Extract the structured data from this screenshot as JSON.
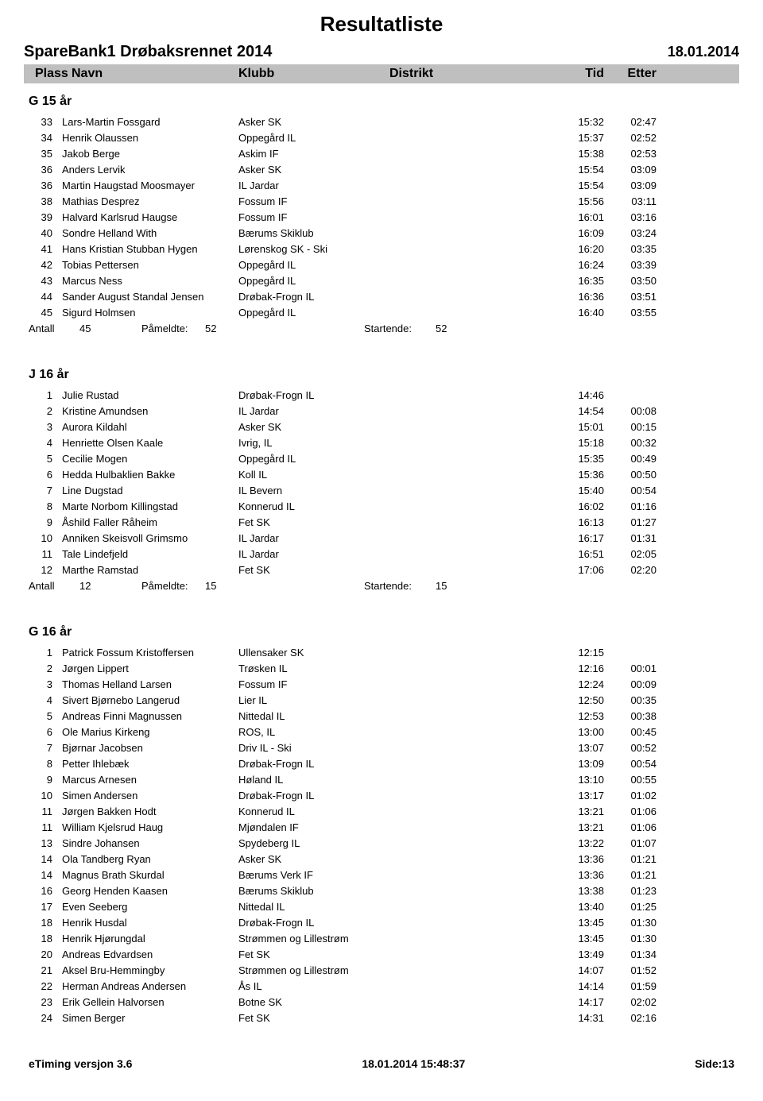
{
  "page_title": "Resultatliste",
  "event_name": "SpareBank1 Drøbaksrennet 2014",
  "event_date": "18.01.2014",
  "headers": {
    "plass": "Plass",
    "navn": "Navn",
    "klubb": "Klubb",
    "distrikt": "Distrikt",
    "tid": "Tid",
    "etter": "Etter"
  },
  "categories": [
    {
      "title": "G 15 år",
      "rows": [
        {
          "plass": "33",
          "navn": "Lars-Martin Fossgard",
          "klubb": "Asker SK",
          "tid": "15:32",
          "etter": "02:47"
        },
        {
          "plass": "34",
          "navn": "Henrik Olaussen",
          "klubb": "Oppegård IL",
          "tid": "15:37",
          "etter": "02:52"
        },
        {
          "plass": "35",
          "navn": "Jakob Berge",
          "klubb": "Askim IF",
          "tid": "15:38",
          "etter": "02:53"
        },
        {
          "plass": "36",
          "navn": "Anders Lervik",
          "klubb": "Asker SK",
          "tid": "15:54",
          "etter": "03:09"
        },
        {
          "plass": "36",
          "navn": "Martin Haugstad Moosmayer",
          "klubb": "IL Jardar",
          "tid": "15:54",
          "etter": "03:09"
        },
        {
          "plass": "38",
          "navn": "Mathias Desprez",
          "klubb": "Fossum IF",
          "tid": "15:56",
          "etter": "03:11"
        },
        {
          "plass": "39",
          "navn": "Halvard Karlsrud Haugse",
          "klubb": "Fossum IF",
          "tid": "16:01",
          "etter": "03:16"
        },
        {
          "plass": "40",
          "navn": "Sondre Helland With",
          "klubb": "Bærums Skiklub",
          "tid": "16:09",
          "etter": "03:24"
        },
        {
          "plass": "41",
          "navn": "Hans Kristian Stubban Hygen",
          "klubb": "Lørenskog SK - Ski",
          "tid": "16:20",
          "etter": "03:35"
        },
        {
          "plass": "42",
          "navn": "Tobias Pettersen",
          "klubb": "Oppegård IL",
          "tid": "16:24",
          "etter": "03:39"
        },
        {
          "plass": "43",
          "navn": "Marcus Ness",
          "klubb": "Oppegård IL",
          "tid": "16:35",
          "etter": "03:50"
        },
        {
          "plass": "44",
          "navn": "Sander August Standal Jensen",
          "klubb": "Drøbak-Frogn IL",
          "tid": "16:36",
          "etter": "03:51"
        },
        {
          "plass": "45",
          "navn": "Sigurd Holmsen",
          "klubb": "Oppegård IL",
          "tid": "16:40",
          "etter": "03:55"
        }
      ],
      "summary": {
        "antall_label": "Antall",
        "antall": "45",
        "pameldte_label": "Påmeldte:",
        "pameldte": "52",
        "startende_label": "Startende:",
        "startende": "52"
      }
    },
    {
      "title": "J 16 år",
      "rows": [
        {
          "plass": "1",
          "navn": "Julie Rustad",
          "klubb": "Drøbak-Frogn IL",
          "tid": "14:46",
          "etter": ""
        },
        {
          "plass": "2",
          "navn": "Kristine Amundsen",
          "klubb": "IL Jardar",
          "tid": "14:54",
          "etter": "00:08"
        },
        {
          "plass": "3",
          "navn": "Aurora Kildahl",
          "klubb": "Asker SK",
          "tid": "15:01",
          "etter": "00:15"
        },
        {
          "plass": "4",
          "navn": "Henriette Olsen Kaale",
          "klubb": "Ivrig, IL",
          "tid": "15:18",
          "etter": "00:32"
        },
        {
          "plass": "5",
          "navn": "Cecilie Mogen",
          "klubb": "Oppegård IL",
          "tid": "15:35",
          "etter": "00:49"
        },
        {
          "plass": "6",
          "navn": "Hedda Hulbaklien Bakke",
          "klubb": "Koll IL",
          "tid": "15:36",
          "etter": "00:50"
        },
        {
          "plass": "7",
          "navn": "Line Dugstad",
          "klubb": "IL Bevern",
          "tid": "15:40",
          "etter": "00:54"
        },
        {
          "plass": "8",
          "navn": "Marte Norbom Killingstad",
          "klubb": "Konnerud IL",
          "tid": "16:02",
          "etter": "01:16"
        },
        {
          "plass": "9",
          "navn": "Åshild Faller Råheim",
          "klubb": "Fet SK",
          "tid": "16:13",
          "etter": "01:27"
        },
        {
          "plass": "10",
          "navn": "Anniken Skeisvoll Grimsmo",
          "klubb": "IL Jardar",
          "tid": "16:17",
          "etter": "01:31"
        },
        {
          "plass": "11",
          "navn": "Tale Lindefjeld",
          "klubb": "IL Jardar",
          "tid": "16:51",
          "etter": "02:05"
        },
        {
          "plass": "12",
          "navn": "Marthe Ramstad",
          "klubb": "Fet SK",
          "tid": "17:06",
          "etter": "02:20"
        }
      ],
      "summary": {
        "antall_label": "Antall",
        "antall": "12",
        "pameldte_label": "Påmeldte:",
        "pameldte": "15",
        "startende_label": "Startende:",
        "startende": "15"
      }
    },
    {
      "title": "G 16 år",
      "rows": [
        {
          "plass": "1",
          "navn": "Patrick Fossum Kristoffersen",
          "klubb": "Ullensaker SK",
          "tid": "12:15",
          "etter": ""
        },
        {
          "plass": "2",
          "navn": "Jørgen Lippert",
          "klubb": "Trøsken IL",
          "tid": "12:16",
          "etter": "00:01"
        },
        {
          "plass": "3",
          "navn": "Thomas Helland Larsen",
          "klubb": "Fossum IF",
          "tid": "12:24",
          "etter": "00:09"
        },
        {
          "plass": "4",
          "navn": "Sivert Bjørnebo Langerud",
          "klubb": "Lier IL",
          "tid": "12:50",
          "etter": "00:35"
        },
        {
          "plass": "5",
          "navn": "Andreas Finni Magnussen",
          "klubb": "Nittedal IL",
          "tid": "12:53",
          "etter": "00:38"
        },
        {
          "plass": "6",
          "navn": "Ole Marius Kirkeng",
          "klubb": "ROS, IL",
          "tid": "13:00",
          "etter": "00:45"
        },
        {
          "plass": "7",
          "navn": "Bjørnar Jacobsen",
          "klubb": "Driv IL - Ski",
          "tid": "13:07",
          "etter": "00:52"
        },
        {
          "plass": "8",
          "navn": "Petter Ihlebæk",
          "klubb": "Drøbak-Frogn IL",
          "tid": "13:09",
          "etter": "00:54"
        },
        {
          "plass": "9",
          "navn": "Marcus Arnesen",
          "klubb": "Høland IL",
          "tid": "13:10",
          "etter": "00:55"
        },
        {
          "plass": "10",
          "navn": "Simen Andersen",
          "klubb": "Drøbak-Frogn IL",
          "tid": "13:17",
          "etter": "01:02"
        },
        {
          "plass": "11",
          "navn": "Jørgen Bakken Hodt",
          "klubb": "Konnerud IL",
          "tid": "13:21",
          "etter": "01:06"
        },
        {
          "plass": "11",
          "navn": "William Kjelsrud Haug",
          "klubb": "Mjøndalen IF",
          "tid": "13:21",
          "etter": "01:06"
        },
        {
          "plass": "13",
          "navn": "Sindre Johansen",
          "klubb": "Spydeberg IL",
          "tid": "13:22",
          "etter": "01:07"
        },
        {
          "plass": "14",
          "navn": "Ola Tandberg Ryan",
          "klubb": "Asker SK",
          "tid": "13:36",
          "etter": "01:21"
        },
        {
          "plass": "14",
          "navn": "Magnus Brath Skurdal",
          "klubb": "Bærums Verk IF",
          "tid": "13:36",
          "etter": "01:21"
        },
        {
          "plass": "16",
          "navn": "Georg Henden Kaasen",
          "klubb": "Bærums Skiklub",
          "tid": "13:38",
          "etter": "01:23"
        },
        {
          "plass": "17",
          "navn": "Even Seeberg",
          "klubb": "Nittedal IL",
          "tid": "13:40",
          "etter": "01:25"
        },
        {
          "plass": "18",
          "navn": "Henrik Husdal",
          "klubb": "Drøbak-Frogn IL",
          "tid": "13:45",
          "etter": "01:30"
        },
        {
          "plass": "18",
          "navn": "Henrik Hjørungdal",
          "klubb": "Strømmen og Lillestrøm",
          "tid": "13:45",
          "etter": "01:30"
        },
        {
          "plass": "20",
          "navn": "Andreas Edvardsen",
          "klubb": "Fet SK",
          "tid": "13:49",
          "etter": "01:34"
        },
        {
          "plass": "21",
          "navn": "Aksel Bru-Hemmingby",
          "klubb": "Strømmen og Lillestrøm",
          "tid": "14:07",
          "etter": "01:52"
        },
        {
          "plass": "22",
          "navn": "Herman Andreas Andersen",
          "klubb": "Ås IL",
          "tid": "14:14",
          "etter": "01:59"
        },
        {
          "plass": "23",
          "navn": "Erik Gellein Halvorsen",
          "klubb": "Botne SK",
          "tid": "14:17",
          "etter": "02:02"
        },
        {
          "plass": "24",
          "navn": "Simen Berger",
          "klubb": "Fet SK",
          "tid": "14:31",
          "etter": "02:16"
        }
      ],
      "summary": null
    }
  ],
  "footer": {
    "left": "eTiming versjon 3.6",
    "center": "18.01.2014 15:48:37",
    "right": "Side:13"
  }
}
